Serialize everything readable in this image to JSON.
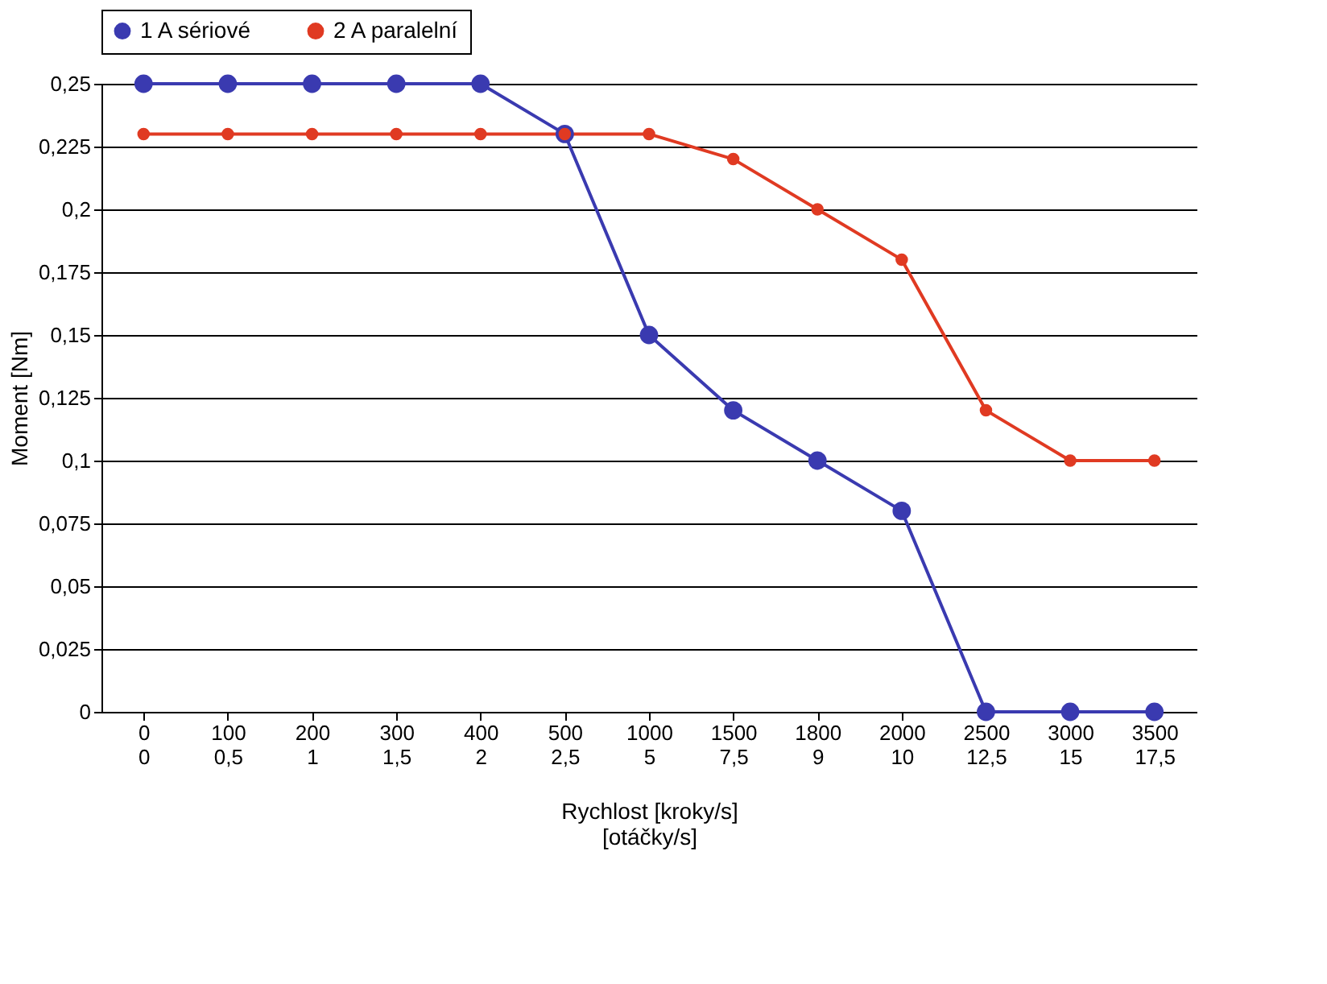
{
  "chart_data": {
    "type": "line",
    "xlabel": "Rychlost [kroky/s]\n[otáčky/s]",
    "ylabel": "Moment [Nm]",
    "categories": [
      "0\n0",
      "100\n0,5",
      "200\n1",
      "300\n1,5",
      "400\n2",
      "500\n2,5",
      "1000\n5",
      "1500\n7,5",
      "1800\n9",
      "2000\n10",
      "2500\n12,5",
      "3000\n15",
      "3500\n17,5"
    ],
    "series": [
      {
        "name": "1 A sériové",
        "color": "#3a3ab0",
        "values": [
          0.25,
          0.25,
          0.25,
          0.25,
          0.25,
          0.23,
          0.15,
          0.12,
          0.1,
          0.08,
          0,
          0,
          0
        ]
      },
      {
        "name": "2 A paralelní",
        "color": "#e03a22",
        "values": [
          0.23,
          0.23,
          0.23,
          0.23,
          0.23,
          0.23,
          0.23,
          0.22,
          0.2,
          0.18,
          0.12,
          0.1,
          0.1
        ]
      }
    ],
    "ylim": [
      0,
      0.25
    ],
    "yticks": [
      {
        "value": 0,
        "label": "0"
      },
      {
        "value": 0.025,
        "label": "0,025"
      },
      {
        "value": 0.05,
        "label": "0,05"
      },
      {
        "value": 0.075,
        "label": "0,075"
      },
      {
        "value": 0.1,
        "label": "0,1"
      },
      {
        "value": 0.125,
        "label": "0,125"
      },
      {
        "value": 0.15,
        "label": "0,15"
      },
      {
        "value": 0.175,
        "label": "0,175"
      },
      {
        "value": 0.2,
        "label": "0,2"
      },
      {
        "value": 0.225,
        "label": "0,225"
      },
      {
        "value": 0.25,
        "label": "0,25"
      }
    ],
    "grid": "y",
    "legend": "top",
    "marker": "circle",
    "line_style": "solid"
  }
}
